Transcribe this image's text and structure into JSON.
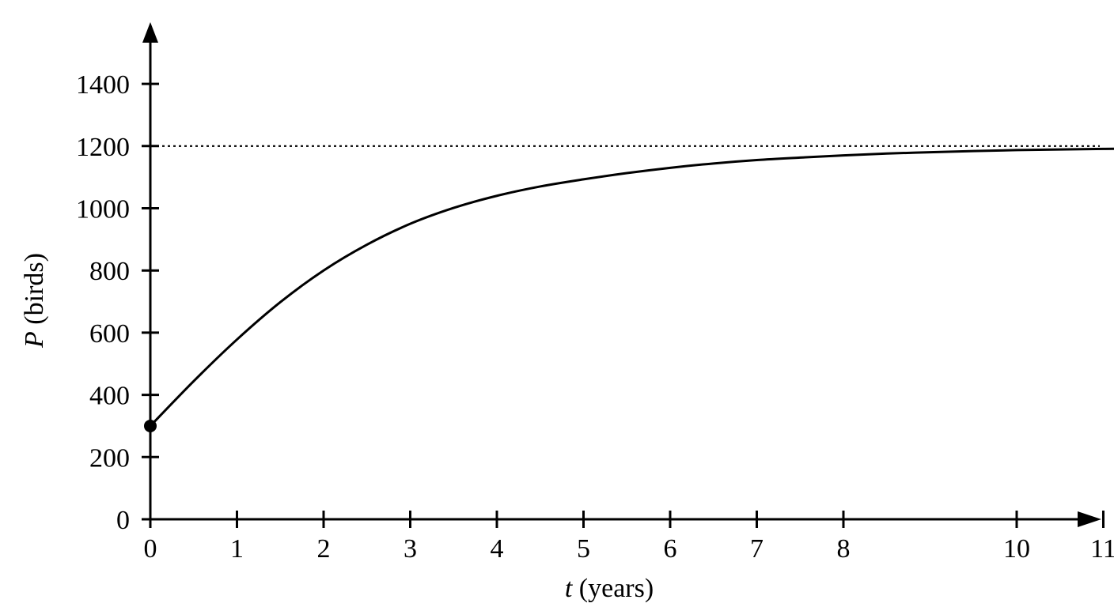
{
  "chart_data": {
    "type": "line",
    "xlabel": {
      "var": "t",
      "unit": " (years)"
    },
    "ylabel": {
      "var": "P",
      "unit": " (birds)"
    },
    "xlim": [
      0,
      12
    ],
    "ylim": [
      0,
      1600
    ],
    "xticks": [
      0,
      1,
      2,
      3,
      4,
      5,
      6,
      7,
      8,
      10,
      11
    ],
    "xtick_labels": [
      "0",
      "1",
      "2",
      "3",
      "4",
      "5",
      "6",
      "7",
      "8",
      "10",
      "11"
    ],
    "yticks": [
      0,
      200,
      400,
      600,
      800,
      1000,
      1200,
      1400
    ],
    "ytick_labels": [
      "0",
      "200",
      "400",
      "600",
      "800",
      "1000",
      "1200",
      "1400"
    ],
    "asymptote": {
      "y": 1200,
      "style": "dotted"
    },
    "initial_point": {
      "x": 0,
      "y": 300
    },
    "series": [
      {
        "x": [
          0,
          0.5,
          1,
          1.5,
          2,
          2.5,
          3,
          3.5,
          4,
          4.5,
          5,
          5.5,
          6,
          6.5,
          7,
          7.5,
          8,
          8.5,
          9,
          9.5,
          10,
          10.5,
          11,
          11.5,
          11.98
        ],
        "y": [
          300,
          444,
          578,
          698,
          800,
          883,
          950,
          1001,
          1040,
          1070,
          1093,
          1113,
          1130,
          1144,
          1155,
          1163,
          1170,
          1176,
          1180,
          1184,
          1187,
          1189,
          1191,
          1192,
          1194
        ]
      }
    ],
    "grid": false,
    "legend": "none"
  }
}
